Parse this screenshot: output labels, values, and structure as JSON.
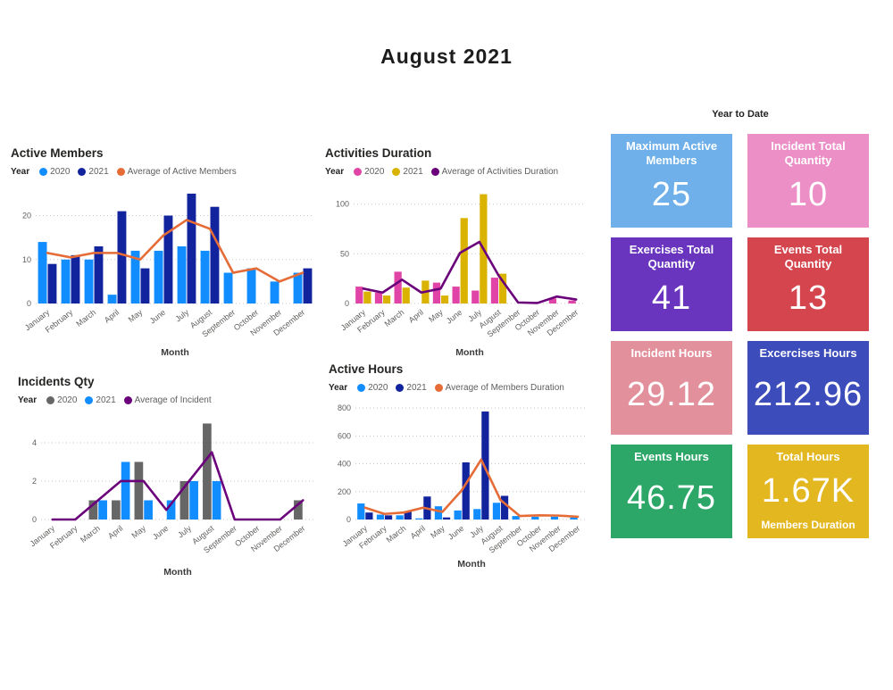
{
  "page": {
    "title": "August 2021"
  },
  "year_to_date_label": "Year to Date",
  "chart_data": [
    {
      "id": "active-members",
      "type": "bar",
      "title": "Active Members",
      "legend_title": "Year",
      "xlabel": "Month",
      "categories": [
        "January",
        "February",
        "March",
        "April",
        "May",
        "June",
        "July",
        "August",
        "September",
        "October",
        "November",
        "December"
      ],
      "yticks": [
        0,
        10,
        20
      ],
      "ymax": 26,
      "series": [
        {
          "name": "2020",
          "type": "bar",
          "color": "#118DFF",
          "values": [
            14,
            10,
            10,
            2,
            12,
            12,
            13,
            12,
            7,
            8,
            5,
            7
          ]
        },
        {
          "name": "2021",
          "type": "bar",
          "color": "#12239E",
          "values": [
            9,
            11,
            13,
            21,
            8,
            20,
            25,
            22,
            null,
            null,
            null,
            8
          ]
        },
        {
          "name": "Average of Active Members",
          "type": "line",
          "color": "#E66C37",
          "values": [
            11.5,
            10.5,
            11.5,
            11.5,
            10,
            15.5,
            19,
            17,
            7,
            8,
            5,
            7
          ]
        }
      ]
    },
    {
      "id": "activities-duration",
      "type": "bar",
      "title": "Activities Duration",
      "legend_title": "Year",
      "xlabel": "Month",
      "categories": [
        "January",
        "February",
        "March",
        "April",
        "May",
        "June",
        "July",
        "August",
        "September",
        "October",
        "November",
        "December"
      ],
      "yticks": [
        0,
        50,
        100
      ],
      "ymax": 115,
      "series": [
        {
          "name": "2020",
          "type": "bar",
          "color": "#E044A7",
          "values": [
            17,
            11,
            32,
            null,
            21,
            17,
            13,
            26,
            null,
            null,
            5,
            3
          ]
        },
        {
          "name": "2021",
          "type": "bar",
          "color": "#D9B300",
          "values": [
            12,
            8,
            16,
            23,
            8,
            86,
            110,
            30,
            null,
            null,
            null,
            null
          ]
        },
        {
          "name": "Average of Activities Duration",
          "type": "line",
          "color": "#6B007B",
          "values": [
            15,
            11,
            24,
            11,
            15,
            51,
            62,
            28,
            1,
            0.5,
            7,
            4
          ]
        }
      ]
    },
    {
      "id": "incidents-qty",
      "type": "bar",
      "title": "Incidents Qty",
      "legend_title": "Year",
      "xlabel": "Month",
      "categories": [
        "January",
        "February",
        "March",
        "April",
        "May",
        "June",
        "July",
        "August",
        "September",
        "October",
        "November",
        "December"
      ],
      "yticks": [
        0,
        2,
        4
      ],
      "ymax": 5.3,
      "series": [
        {
          "name": "2020",
          "type": "bar",
          "color": "#666666",
          "values": [
            null,
            null,
            1,
            1,
            3,
            null,
            2,
            5,
            null,
            null,
            null,
            1
          ]
        },
        {
          "name": "2021",
          "type": "bar",
          "color": "#118DFF",
          "values": [
            null,
            null,
            1,
            3,
            1,
            1,
            2,
            2,
            null,
            null,
            null,
            null
          ]
        },
        {
          "name": "Average of Incident",
          "type": "line",
          "color": "#6B007B",
          "values": [
            0,
            0,
            1,
            2,
            2,
            0.5,
            2,
            3.5,
            0,
            0,
            0,
            1
          ]
        }
      ]
    },
    {
      "id": "active-hours",
      "type": "bar",
      "title": "Active Hours",
      "legend_title": "Year",
      "xlabel": "Month",
      "categories": [
        "January",
        "February",
        "March",
        "April",
        "May",
        "June",
        "July",
        "August",
        "September",
        "October",
        "November",
        "December"
      ],
      "yticks": [
        0,
        200,
        400,
        600,
        800
      ],
      "ymax": 820,
      "series": [
        {
          "name": "2020",
          "type": "bar",
          "color": "#118DFF",
          "values": [
            115,
            35,
            30,
            8,
            95,
            65,
            75,
            120,
            25,
            20,
            20,
            15
          ]
        },
        {
          "name": "2021",
          "type": "bar",
          "color": "#12239E",
          "values": [
            50,
            30,
            60,
            165,
            15,
            410,
            775,
            170,
            null,
            null,
            null,
            null
          ]
        },
        {
          "name": "Average of Members Duration",
          "type": "line",
          "color": "#E66C37",
          "values": [
            85,
            40,
            50,
            85,
            55,
            210,
            430,
            140,
            25,
            30,
            28,
            20
          ]
        }
      ]
    }
  ],
  "cards": [
    {
      "label": "Maximum Active Members",
      "value": "25",
      "color": "#6FB0EA"
    },
    {
      "label": "Incident Total Quantity",
      "value": "10",
      "color": "#EC8FC7"
    },
    {
      "label": "Exercises Total Quantity",
      "value": "41",
      "color": "#6935BE"
    },
    {
      "label": "Events Total Quantity",
      "value": "13",
      "color": "#D4454E"
    },
    {
      "label": "Incident Hours",
      "value": "29.12",
      "color": "#E2909C"
    },
    {
      "label": "Excercises Hours",
      "value": "212.96",
      "color": "#3C4CBB"
    },
    {
      "label": "Events Hours",
      "value": "46.75",
      "color": "#2CA768"
    },
    {
      "label": "Total Hours",
      "value": "1.67K",
      "sub": "Members Duration",
      "color": "#E2B71F"
    }
  ]
}
